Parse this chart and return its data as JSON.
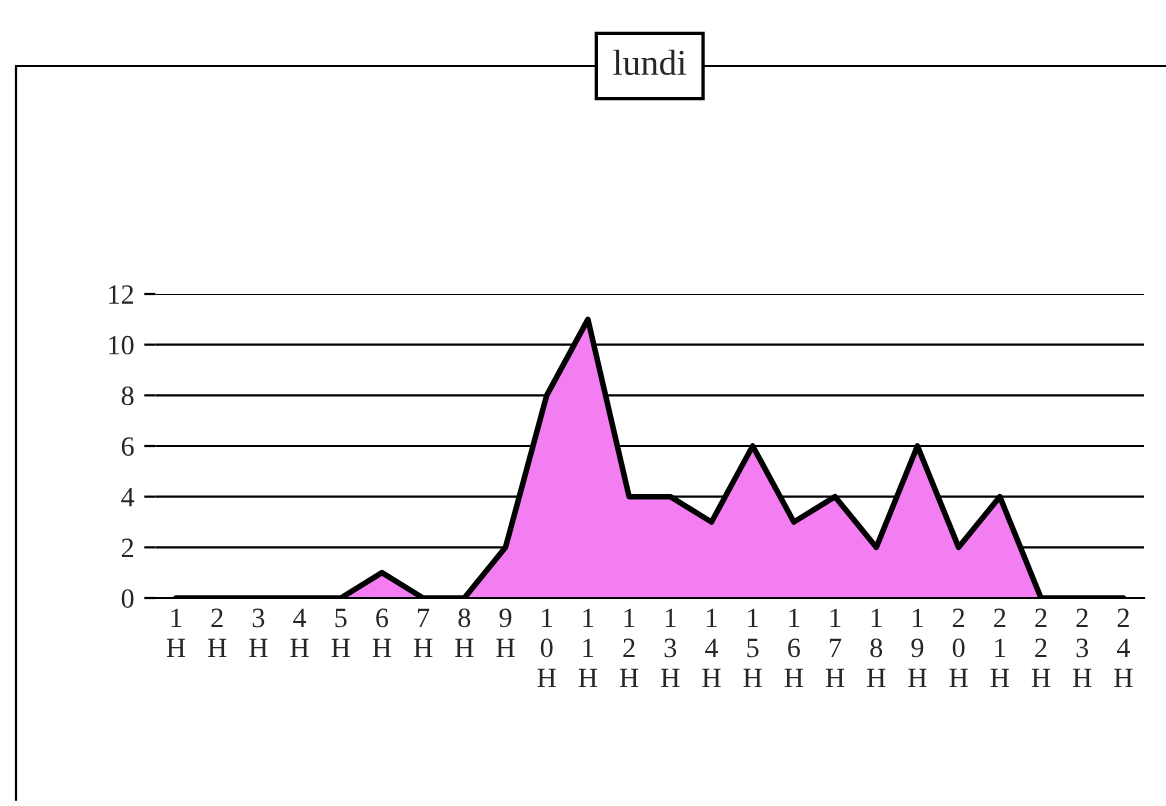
{
  "chart_data": {
    "type": "area",
    "title": "lundi",
    "categories": [
      "1H",
      "2H",
      "3H",
      "4H",
      "5H",
      "6H",
      "7H",
      "8H",
      "9H",
      "10H",
      "11H",
      "12H",
      "13H",
      "14H",
      "15H",
      "16H",
      "17H",
      "18H",
      "19H",
      "20H",
      "21H",
      "22H",
      "23H",
      "24H"
    ],
    "series": [
      {
        "color": "#f27ef2",
        "values": [
          0,
          0,
          0,
          0,
          0,
          1,
          0,
          0,
          2,
          8,
          11,
          4,
          4,
          3,
          6,
          3,
          4,
          2,
          6,
          2,
          4,
          0,
          0,
          0
        ]
      }
    ],
    "ylim": [
      0,
      12
    ],
    "yticks": [
      0,
      2,
      4,
      6,
      8,
      10,
      12
    ],
    "grid": "y",
    "legend": false
  }
}
